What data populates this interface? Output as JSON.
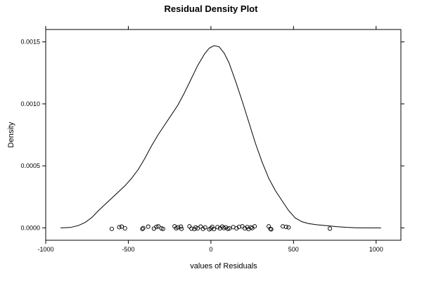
{
  "chart_data": {
    "type": "line",
    "title": "Residual Density Plot",
    "xlabel": "values of Residuals",
    "ylabel": "Density",
    "xlim": [
      -1000,
      1150
    ],
    "ylim": [
      -0.0001,
      0.0016
    ],
    "x_ticks": [
      -1000,
      -500,
      0,
      500,
      1000
    ],
    "x_tick_labels": [
      "-1000",
      "-500",
      "0",
      "500",
      "1000"
    ],
    "y_ticks": [
      0,
      0.0005,
      0.001,
      0.0015
    ],
    "y_tick_labels": [
      "0.0000",
      "0.0005",
      "0.0010",
      "0.0015"
    ],
    "grid": false,
    "series": [
      {
        "x": [
          -910,
          -850,
          -800,
          -760,
          -720,
          -680,
          -640,
          -600,
          -560,
          -520,
          -480,
          -440,
          -400,
          -360,
          -320,
          -280,
          -240,
          -200,
          -160,
          -120,
          -80,
          -40,
          -10,
          20,
          50,
          80,
          110,
          150,
          190,
          230,
          270,
          310,
          350,
          390,
          430,
          470,
          510,
          550,
          590,
          640,
          700,
          760,
          820,
          880,
          940,
          1000,
          1030
        ],
        "y": [
          0.0,
          3e-06,
          2e-05,
          4.5e-05,
          8.5e-05,
          0.00014,
          0.00019,
          0.00024,
          0.00029,
          0.00034,
          0.0004,
          0.00047,
          0.00056,
          0.00066,
          0.00075,
          0.00083,
          0.00091,
          0.00099,
          0.00109,
          0.0012,
          0.00131,
          0.0014,
          0.00145,
          0.00147,
          0.00146,
          0.00141,
          0.00133,
          0.00118,
          0.00102,
          0.00085,
          0.00068,
          0.00053,
          0.0004,
          0.0003,
          0.00022,
          0.00014,
          8e-05,
          5e-05,
          3.5e-05,
          2.5e-05,
          1.8e-05,
          1e-05,
          4e-06,
          1e-06,
          0.0,
          0.0,
          0.0
        ]
      }
    ],
    "rug": {
      "x": [
        -600,
        -555,
        -540,
        -520,
        -415,
        -410,
        -380,
        -345,
        -330,
        -318,
        -300,
        -290,
        -220,
        -210,
        -200,
        -182,
        -178,
        -130,
        -118,
        -100,
        -92,
        -80,
        -62,
        -48,
        -35,
        -10,
        0,
        8,
        18,
        40,
        55,
        68,
        78,
        90,
        102,
        112,
        135,
        155,
        170,
        190,
        205,
        220,
        228,
        242,
        250,
        265,
        350,
        360,
        365,
        435,
        455,
        470,
        720
      ],
      "y": [
        -8e-06,
        5e-06,
        1e-05,
        -4e-06,
        -9e-06,
        -2e-06,
        1e-05,
        -6e-06,
        8e-06,
        1.2e-05,
        -4e-06,
        -8e-06,
        1.2e-05,
        -4e-06,
        4e-06,
        1e-05,
        -8e-06,
        1.2e-05,
        -6e-06,
        -1e-05,
        4e-06,
        -4e-06,
        1e-05,
        -8e-06,
        4e-06,
        -1.2e-05,
        -4e-06,
        8e-06,
        -1e-05,
        6e-06,
        -4e-06,
        1e-05,
        -2e-06,
        4e-06,
        -8e-06,
        -4e-06,
        6e-06,
        -4e-06,
        8e-06,
        1.2e-05,
        -4e-06,
        6e-06,
        -1e-05,
        4e-06,
        -2e-06,
        1.2e-05,
        1.2e-05,
        -8e-06,
        -1.2e-05,
        1.2e-05,
        8e-06,
        4e-06,
        -6e-06
      ]
    }
  }
}
